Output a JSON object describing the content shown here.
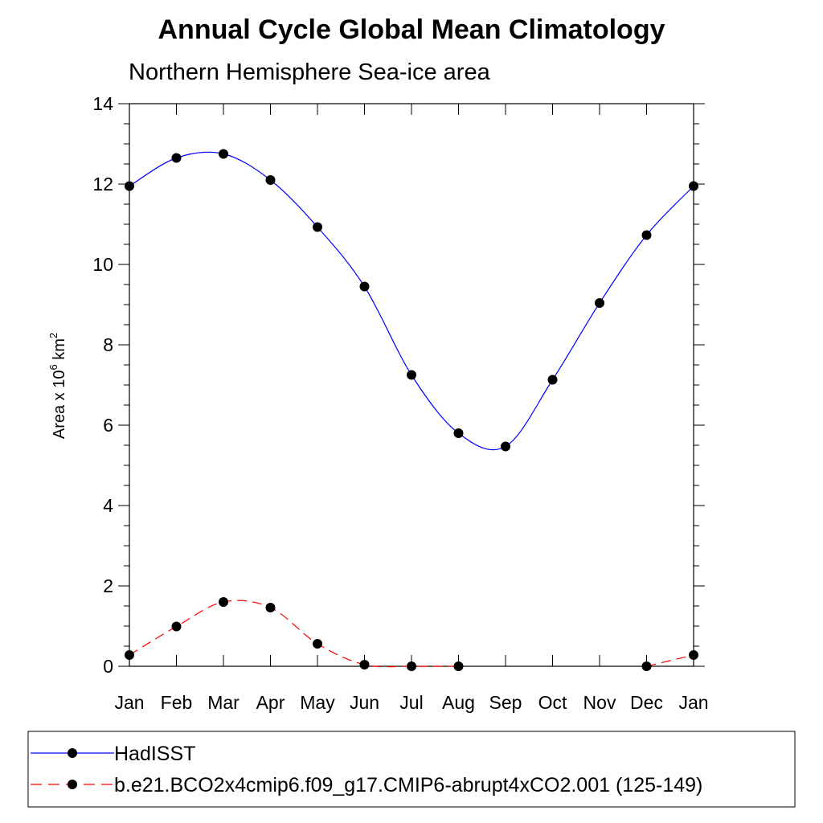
{
  "chart_data": {
    "type": "line",
    "title": "Annual Cycle Global Mean Climatology",
    "subtitle": "Northern Hemisphere Sea-ice area",
    "ylabel": {
      "prefix": "Area x 10",
      "exp": "6",
      "unit": " km",
      "unit_exp": "2"
    },
    "ylim": [
      0,
      14
    ],
    "yticks": [
      0,
      2,
      4,
      6,
      8,
      10,
      12,
      14
    ],
    "categories": [
      "Jan",
      "Feb",
      "Mar",
      "Apr",
      "May",
      "Jun",
      "Jul",
      "Aug",
      "Sep",
      "Oct",
      "Nov",
      "Dec",
      "Jan"
    ],
    "series": [
      {
        "name": "HadISST",
        "color": "#0000ff",
        "dash": "solid",
        "values": [
          11.95,
          12.65,
          12.75,
          12.1,
          10.93,
          9.45,
          7.25,
          5.8,
          5.47,
          7.13,
          9.04,
          10.73,
          11.95
        ]
      },
      {
        "name": "b.e21.BCO2x4cmip6.f09_g17.CMIP6-abrupt4xCO2.001 (125-149)",
        "color": "#ff0000",
        "dash": "dashed",
        "values": [
          0.28,
          0.99,
          1.6,
          1.46,
          0.56,
          0.04,
          0.0,
          0.0,
          null,
          null,
          null,
          0.0,
          0.28
        ]
      }
    ]
  }
}
